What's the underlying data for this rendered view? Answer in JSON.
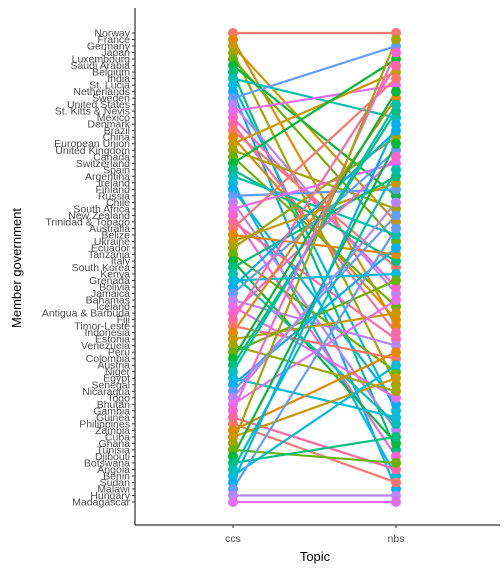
{
  "chart_data": {
    "type": "slope",
    "xlabel": "Topic",
    "ylabel": "Member government",
    "x_categories": [
      "ccs",
      "nbs"
    ],
    "grid": false,
    "legend": "none",
    "countries": [
      "Norway",
      "France",
      "Germany",
      "Japan",
      "Luxembourg",
      "Saudi Arabia",
      "Belgium",
      "India",
      "St. Lucia",
      "Netherlands",
      "Sweden",
      "United States",
      "St. Kitts & Nevis",
      "Mexico",
      "Denmark",
      "Brazil",
      "China",
      "European Union",
      "United Kingdom",
      "Canada",
      "Switzerland",
      "Spain",
      "Argentina",
      "Ireland",
      "Finland",
      "Russia",
      "Chile",
      "South Africa",
      "New Zealand",
      "Trinidad & Tobago",
      "Australia",
      "Belize",
      "Ukraine",
      "Ecuador",
      "Tanzania",
      "Italy",
      "South Korea",
      "Kenya",
      "Grenada",
      "Bolivia",
      "Jamaica",
      "Bahamas",
      "Iceland",
      "Antigua & Barbuda",
      "Fiji",
      "Timor-Leste",
      "Indonesia",
      "Estonia",
      "Venezuela",
      "Peru",
      "Colombia",
      "Austria",
      "Niger",
      "Egypt",
      "Senegal",
      "Nicaragua",
      "Togo",
      "Bhutan",
      "Gambia",
      "Guinea",
      "Philippines",
      "Zambia",
      "Cuba",
      "Ghana",
      "Tunisia",
      "Djibouti",
      "Botswana",
      "Angola",
      "Benin",
      "Sudan",
      "Malawi",
      "Hungary",
      "Madagascar"
    ],
    "palette": [
      "#F8766D",
      "#E58700",
      "#C99800",
      "#A3A500",
      "#6BB100",
      "#00BA38",
      "#00BF7D",
      "#00C0AF",
      "#00BCD8",
      "#00B0F6",
      "#619CFF",
      "#B983FF",
      "#E76BF3",
      "#FD61D1",
      "#FF67A4"
    ],
    "line_width": 2.2,
    "point_size": 5
  }
}
